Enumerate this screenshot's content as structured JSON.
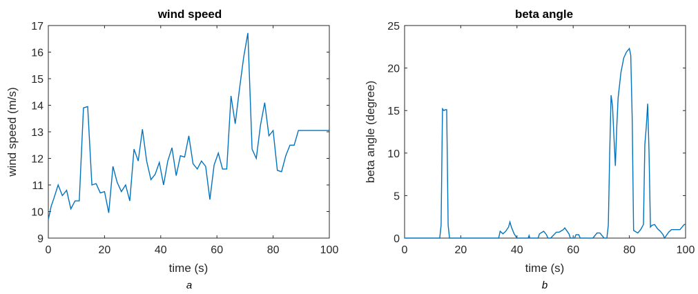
{
  "chart_data": [
    {
      "type": "line",
      "title": "wind speed",
      "xlabel": "time (s)",
      "ylabel": "wind speed (m/s)",
      "caption": "a",
      "xlim": [
        0,
        100
      ],
      "ylim": [
        9,
        17
      ],
      "xticks": [
        "0",
        "20",
        "40",
        "60",
        "80",
        "100"
      ],
      "yticks": [
        "9",
        "10",
        "11",
        "12",
        "13",
        "14",
        "15",
        "16",
        "17"
      ],
      "line_color": "#0072BD",
      "series": [
        {
          "x": [
            0,
            1,
            2,
            3.5,
            5,
            6.5,
            8,
            9.5,
            11,
            12.5,
            14,
            15.5,
            17,
            18.5,
            20,
            21.5,
            23,
            24.5,
            26,
            27.5,
            29,
            30.5,
            32,
            33.5,
            35,
            36.5,
            38,
            39.5,
            41,
            42.5,
            44,
            45.5,
            47,
            48.5,
            50,
            51.5,
            53,
            54.5,
            56,
            57.5,
            59,
            60.5,
            62,
            63.5,
            65,
            66.5,
            68,
            69.5,
            71,
            72.5,
            74,
            75.5,
            77,
            78.5,
            80,
            81.5,
            83,
            84.5,
            86,
            87.5,
            89,
            90.5,
            92,
            93.5,
            95,
            96.5,
            98,
            99.5,
            100
          ],
          "y": [
            9.7,
            10.2,
            10.5,
            11.0,
            10.6,
            10.8,
            10.1,
            10.4,
            10.4,
            13.9,
            13.95,
            11.0,
            11.05,
            10.7,
            10.75,
            9.95,
            11.7,
            11.1,
            10.75,
            11.0,
            10.4,
            12.35,
            11.9,
            13.1,
            11.9,
            11.2,
            11.4,
            11.85,
            11.0,
            11.9,
            12.4,
            11.35,
            12.1,
            12.05,
            12.85,
            11.8,
            11.6,
            11.9,
            11.7,
            10.45,
            11.75,
            12.2,
            11.6,
            11.6,
            14.35,
            13.3,
            14.6,
            15.8,
            16.72,
            12.35,
            12.0,
            13.25,
            14.1,
            12.85,
            13.05,
            11.55,
            11.5,
            12.1,
            12.5,
            12.5,
            13.05,
            13.05,
            13.05,
            13.05,
            13.05,
            13.05,
            13.05,
            13.05,
            13.05
          ]
        }
      ]
    },
    {
      "type": "line",
      "title": "beta angle",
      "xlabel": "time (s)",
      "ylabel": "beta angle (degree)",
      "caption": "b",
      "xlim": [
        0,
        100
      ],
      "ylim": [
        0,
        25
      ],
      "xticks": [
        "0",
        "20",
        "40",
        "60",
        "80",
        "100"
      ],
      "yticks": [
        "0",
        "5",
        "10",
        "15",
        "20",
        "25"
      ],
      "line_color": "#0072BD",
      "series": [
        {
          "x": [
            0,
            12.5,
            13,
            13.5,
            14,
            14.5,
            15,
            15.5,
            16,
            17,
            33.5,
            34,
            35,
            36,
            37,
            37.5,
            38,
            39,
            40,
            40.5,
            44,
            44.3,
            44.6,
            47.5,
            48,
            49.5,
            50.5,
            51,
            52,
            54,
            55,
            56.5,
            57,
            58.5,
            59,
            60.5,
            61,
            62,
            62.5,
            67,
            68.5,
            69.5,
            71,
            72,
            72.5,
            73,
            73.5,
            74,
            74.5,
            75,
            75.5,
            76,
            77,
            78,
            79,
            80,
            80.5,
            81,
            81.5,
            82,
            83,
            84,
            85,
            85.5,
            86,
            86.5,
            87,
            87.5,
            88,
            89,
            90,
            91,
            92,
            92.5,
            94,
            95,
            96,
            98,
            99.5,
            100
          ],
          "y": [
            0,
            0,
            1.5,
            15.2,
            15.0,
            15.1,
            15.1,
            1.5,
            0,
            0,
            0,
            0.8,
            0.5,
            0.8,
            1.3,
            1.9,
            1.3,
            0.5,
            0,
            0,
            0,
            0.3,
            0,
            0,
            0.5,
            0.8,
            0.4,
            0,
            0,
            0.7,
            0.7,
            1.0,
            1.2,
            0.5,
            0,
            0,
            0.4,
            0.4,
            0,
            0,
            0.6,
            0.6,
            0,
            0,
            1.5,
            10,
            16.8,
            15.5,
            12,
            8.5,
            13,
            16.5,
            19.5,
            21.2,
            21.9,
            22.3,
            21.5,
            14,
            0.9,
            0.8,
            0.6,
            1.0,
            1.6,
            11,
            13,
            15.8,
            10,
            1.3,
            1.5,
            1.6,
            1.1,
            0.8,
            0.4,
            0,
            0.7,
            1.0,
            1.0,
            1.0,
            1.6,
            1.6
          ]
        }
      ]
    }
  ]
}
